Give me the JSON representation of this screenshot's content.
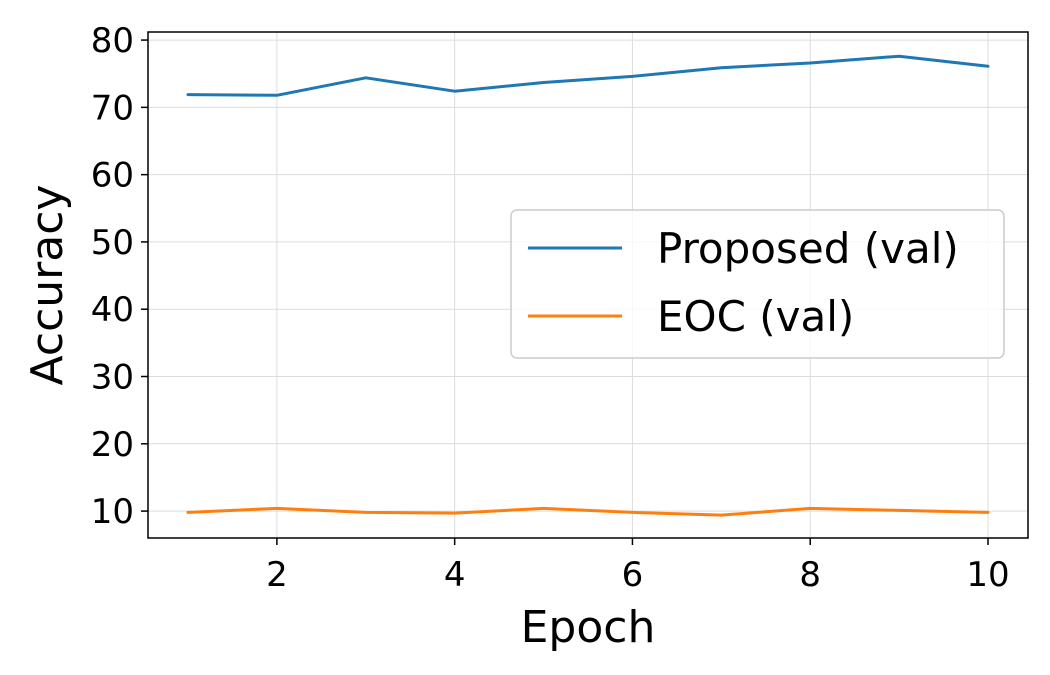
{
  "chart_data": {
    "type": "line",
    "title": "",
    "xlabel": "Epoch",
    "ylabel": "Accuracy",
    "xlim": [
      0.55,
      10.45
    ],
    "ylim": [
      6.0,
      81.2
    ],
    "xticks": [
      2,
      4,
      6,
      8,
      10
    ],
    "yticks": [
      10,
      20,
      30,
      40,
      50,
      60,
      70,
      80
    ],
    "grid": true,
    "legend_position": "center-right",
    "x": [
      1,
      2,
      3,
      4,
      5,
      6,
      7,
      8,
      9,
      10
    ],
    "series": [
      {
        "name": "Proposed (val)",
        "color": "#1f77b4",
        "values": [
          71.9,
          71.8,
          74.4,
          72.4,
          73.7,
          74.6,
          75.9,
          76.6,
          77.6,
          76.1
        ]
      },
      {
        "name": "EOC (val)",
        "color": "#ff7f0e",
        "values": [
          9.8,
          10.4,
          9.8,
          9.7,
          10.4,
          9.8,
          9.4,
          10.4,
          10.1,
          9.8
        ]
      }
    ]
  }
}
